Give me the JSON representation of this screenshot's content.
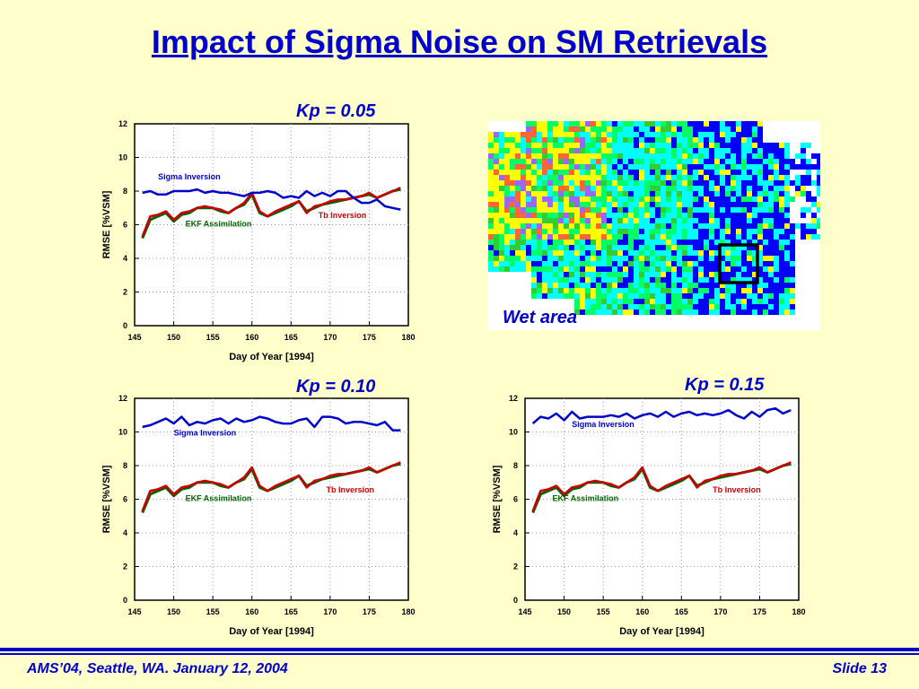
{
  "slide": {
    "title": "Impact of Sigma Noise on SM Retrievals",
    "footer_left": "AMS’04, Seattle, WA. January 12, 2004",
    "footer_right": "Slide 13",
    "title_color": "#0000CC",
    "background": "#FFFFCC"
  },
  "map": {
    "label": "Wet area",
    "colors": [
      "#00FFFF",
      "#00FF66",
      "#FFFF00",
      "#0000FF",
      "#FF6633",
      "#9966FF",
      "#33CC33"
    ]
  },
  "chart_data": [
    {
      "type": "line",
      "title": "Kp = 0.05",
      "xlabel": "Day of Year [1994]",
      "ylabel": "RMSE [%VSM]",
      "xlim": [
        145,
        180
      ],
      "ylim": [
        0,
        12
      ],
      "xticks": [
        145,
        150,
        155,
        160,
        165,
        170,
        175,
        180
      ],
      "yticks": [
        0,
        2,
        4,
        6,
        8,
        10,
        12
      ],
      "grid": true,
      "x": [
        146,
        147,
        148,
        149,
        150,
        151,
        152,
        153,
        154,
        155,
        156,
        157,
        158,
        159,
        160,
        161,
        162,
        163,
        164,
        165,
        166,
        167,
        168,
        169,
        170,
        171,
        172,
        173,
        174,
        175,
        176,
        177,
        178,
        179
      ],
      "series": [
        {
          "name": "Sigma Inversion",
          "color": "#0000CC",
          "values": [
            7.9,
            8.0,
            7.8,
            7.8,
            8.0,
            8.0,
            8.0,
            8.1,
            7.9,
            8.0,
            7.9,
            7.9,
            7.8,
            7.7,
            7.9,
            7.9,
            8.0,
            7.9,
            7.6,
            7.7,
            7.6,
            8.0,
            7.7,
            7.9,
            7.7,
            8.0,
            8.0,
            7.6,
            7.3,
            7.3,
            7.5,
            7.1,
            7.0,
            6.9
          ]
        },
        {
          "name": "Tb Inversion",
          "color": "#CC0000",
          "values": [
            5.3,
            6.5,
            6.6,
            6.8,
            6.3,
            6.7,
            6.8,
            7.0,
            7.1,
            7.0,
            6.9,
            6.7,
            7.0,
            7.3,
            7.9,
            6.8,
            6.5,
            6.8,
            7.0,
            7.2,
            7.4,
            6.7,
            7.1,
            7.2,
            7.4,
            7.5,
            7.5,
            7.6,
            7.7,
            7.9,
            7.6,
            7.8,
            8.0,
            8.2
          ]
        },
        {
          "name": "EKF Assimilation",
          "color": "#006600",
          "values": [
            5.2,
            6.3,
            6.5,
            6.7,
            6.2,
            6.6,
            6.7,
            7.0,
            7.0,
            7.0,
            6.8,
            6.7,
            7.0,
            7.2,
            7.8,
            6.7,
            6.5,
            6.7,
            6.9,
            7.1,
            7.4,
            6.8,
            7.0,
            7.2,
            7.3,
            7.4,
            7.5,
            7.6,
            7.7,
            7.8,
            7.6,
            7.8,
            8.0,
            8.1
          ]
        }
      ]
    },
    {
      "type": "line",
      "title": "Kp = 0.10",
      "xlabel": "Day of Year [1994]",
      "ylabel": "RMSE [%VSM]",
      "xlim": [
        145,
        180
      ],
      "ylim": [
        0,
        12
      ],
      "xticks": [
        145,
        150,
        155,
        160,
        165,
        170,
        175,
        180
      ],
      "yticks": [
        0,
        2,
        4,
        6,
        8,
        10,
        12
      ],
      "grid": true,
      "x": [
        146,
        147,
        148,
        149,
        150,
        151,
        152,
        153,
        154,
        155,
        156,
        157,
        158,
        159,
        160,
        161,
        162,
        163,
        164,
        165,
        166,
        167,
        168,
        169,
        170,
        171,
        172,
        173,
        174,
        175,
        176,
        177,
        178,
        179
      ],
      "series": [
        {
          "name": "Sigma Inversion",
          "color": "#0000CC",
          "values": [
            10.3,
            10.4,
            10.6,
            10.8,
            10.5,
            10.9,
            10.4,
            10.6,
            10.5,
            10.7,
            10.8,
            10.5,
            10.8,
            10.6,
            10.7,
            10.9,
            10.8,
            10.6,
            10.5,
            10.5,
            10.7,
            10.8,
            10.3,
            10.9,
            10.9,
            10.8,
            10.5,
            10.6,
            10.6,
            10.5,
            10.4,
            10.6,
            10.1,
            10.1
          ]
        },
        {
          "name": "Tb Inversion",
          "color": "#CC0000",
          "values": [
            5.3,
            6.5,
            6.6,
            6.8,
            6.3,
            6.7,
            6.8,
            7.0,
            7.1,
            7.0,
            6.9,
            6.7,
            7.0,
            7.3,
            7.9,
            6.8,
            6.5,
            6.8,
            7.0,
            7.2,
            7.4,
            6.7,
            7.1,
            7.2,
            7.4,
            7.5,
            7.5,
            7.6,
            7.7,
            7.9,
            7.6,
            7.8,
            8.0,
            8.2
          ]
        },
        {
          "name": "EKF Assimilation",
          "color": "#006600",
          "values": [
            5.2,
            6.3,
            6.5,
            6.7,
            6.2,
            6.6,
            6.7,
            7.0,
            7.0,
            7.0,
            6.8,
            6.7,
            7.0,
            7.2,
            7.8,
            6.7,
            6.5,
            6.7,
            6.9,
            7.1,
            7.4,
            6.8,
            7.0,
            7.2,
            7.3,
            7.4,
            7.5,
            7.6,
            7.7,
            7.8,
            7.6,
            7.8,
            8.0,
            8.1
          ]
        }
      ]
    },
    {
      "type": "line",
      "title": "Kp = 0.15",
      "xlabel": "Day of Year [1994]",
      "ylabel": "RMSE [%VSM]",
      "xlim": [
        145,
        180
      ],
      "ylim": [
        0,
        12
      ],
      "xticks": [
        145,
        150,
        155,
        160,
        165,
        170,
        175,
        180
      ],
      "yticks": [
        0,
        2,
        4,
        6,
        8,
        10,
        12
      ],
      "grid": true,
      "x": [
        146,
        147,
        148,
        149,
        150,
        151,
        152,
        153,
        154,
        155,
        156,
        157,
        158,
        159,
        160,
        161,
        162,
        163,
        164,
        165,
        166,
        167,
        168,
        169,
        170,
        171,
        172,
        173,
        174,
        175,
        176,
        177,
        178,
        179
      ],
      "series": [
        {
          "name": "Sigma Inversion",
          "color": "#0000CC",
          "values": [
            10.5,
            10.9,
            10.8,
            11.1,
            10.7,
            11.2,
            10.8,
            10.9,
            10.9,
            10.9,
            11.0,
            10.9,
            11.1,
            10.8,
            11.0,
            11.1,
            10.9,
            11.2,
            10.9,
            11.1,
            11.2,
            11.0,
            11.1,
            11.0,
            11.1,
            11.3,
            11.0,
            10.8,
            11.2,
            10.9,
            11.3,
            11.4,
            11.1,
            11.3
          ]
        },
        {
          "name": "Tb Inversion",
          "color": "#CC0000",
          "values": [
            5.3,
            6.5,
            6.6,
            6.8,
            6.3,
            6.7,
            6.8,
            7.0,
            7.1,
            7.0,
            6.9,
            6.7,
            7.0,
            7.3,
            7.9,
            6.8,
            6.5,
            6.8,
            7.0,
            7.2,
            7.4,
            6.7,
            7.1,
            7.2,
            7.4,
            7.5,
            7.5,
            7.6,
            7.7,
            7.9,
            7.6,
            7.8,
            8.0,
            8.2
          ]
        },
        {
          "name": "EKF Assimilation",
          "color": "#006600",
          "values": [
            5.2,
            6.3,
            6.5,
            6.7,
            6.2,
            6.6,
            6.7,
            7.0,
            7.0,
            7.0,
            6.8,
            6.7,
            7.0,
            7.2,
            7.8,
            6.7,
            6.5,
            6.7,
            6.9,
            7.1,
            7.4,
            6.8,
            7.0,
            7.2,
            7.3,
            7.4,
            7.5,
            7.6,
            7.7,
            7.8,
            7.6,
            7.8,
            8.0,
            8.1
          ]
        }
      ]
    }
  ]
}
